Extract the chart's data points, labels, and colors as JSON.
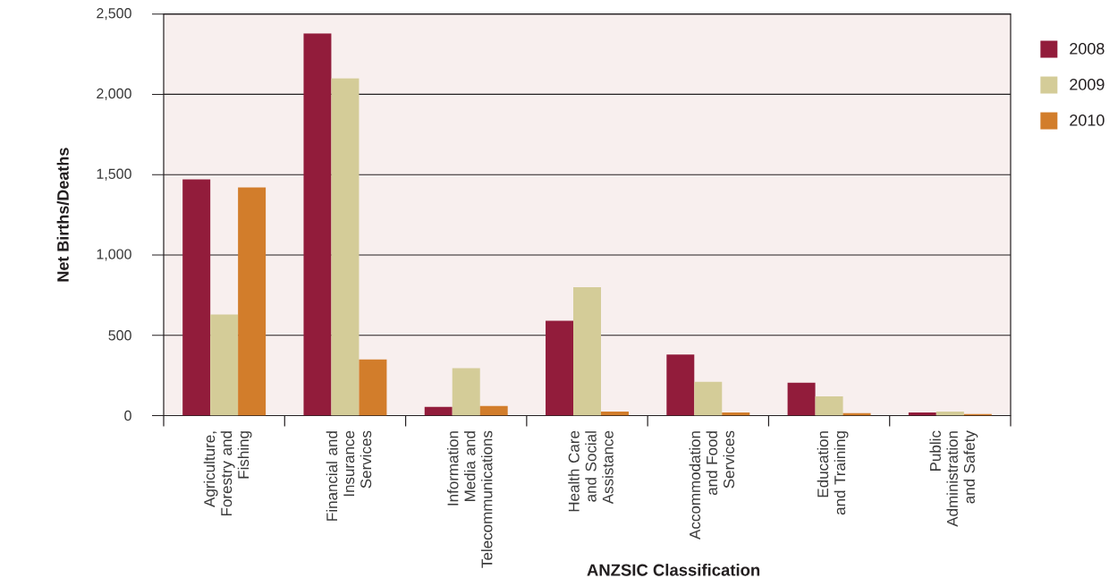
{
  "chart_data": {
    "type": "bar",
    "xlabel": "ANZSIC Classification",
    "ylabel": "Net Births/Deaths",
    "categories": [
      "Agriculture,\nForestry and\nFishing",
      "Financial and\nInsurance\nServices",
      "Information\nMedia and\nTelecommunications",
      "Health Care\nand Social\nAssistance",
      "Accommodation\nand Food\nServices",
      "Education\nand Training",
      "Public\nAdministration\nand Safety"
    ],
    "series": [
      {
        "name": "2008",
        "color": "#921c3b",
        "values": [
          1470,
          2380,
          55,
          590,
          380,
          205,
          20
        ]
      },
      {
        "name": "2009",
        "color": "#d4cc98",
        "values": [
          630,
          2100,
          295,
          800,
          210,
          120,
          25
        ]
      },
      {
        "name": "2010",
        "color": "#d27d2b",
        "values": [
          1420,
          350,
          60,
          25,
          20,
          15,
          10
        ]
      }
    ],
    "ylim": [
      0,
      2500
    ],
    "yticks": [
      0,
      500,
      {
        "value": 1000,
        "label": "1,000"
      },
      {
        "value": 1500,
        "label": "1,500"
      },
      {
        "value": 2000,
        "label": "2,000"
      },
      {
        "value": 2500,
        "label": "2,500"
      }
    ],
    "grid": "y",
    "legend": "right"
  }
}
